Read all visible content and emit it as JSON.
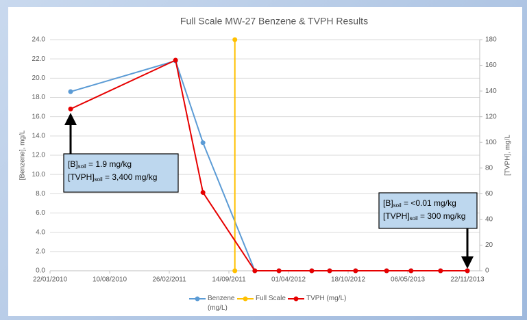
{
  "chart_data": {
    "type": "line",
    "title": "Full Scale MW-27 Benzene & TVPH Results",
    "y_label": "[Benzene], mg/L",
    "y2_label": "[TVPH], mg/L",
    "xlim": [
      "22/01/2010",
      "22/11/2013"
    ],
    "xticks": [
      "22/01/2010",
      "10/08/2010",
      "26/02/2011",
      "14/09/2011",
      "01/04/2012",
      "18/10/2012",
      "06/05/2013",
      "22/11/2013"
    ],
    "ylim": [
      0,
      24
    ],
    "yticks": [
      {
        "value": 0,
        "label": "0.0"
      },
      {
        "value": 2,
        "label": "2.0"
      },
      {
        "value": 4,
        "label": "4.0"
      },
      {
        "value": 6,
        "label": "6.0"
      },
      {
        "value": 8,
        "label": "8.0"
      },
      {
        "value": 10,
        "label": "10.0"
      },
      {
        "value": 12,
        "label": "12.0"
      },
      {
        "value": 14,
        "label": "14.0"
      },
      {
        "value": 16,
        "label": "16.0"
      },
      {
        "value": 18,
        "label": "18.0"
      },
      {
        "value": 20,
        "label": "20.0"
      },
      {
        "value": 22,
        "label": "22.0"
      },
      {
        "value": 24,
        "label": "24.0"
      }
    ],
    "y2lim": [
      0,
      180
    ],
    "y2ticks": [
      0,
      20,
      40,
      60,
      80,
      100,
      120,
      140,
      160,
      180
    ],
    "grid": true,
    "legend": "bottom",
    "series": [
      {
        "name": "Benzene (mg/L)",
        "color": "#5b9bd5",
        "x": [
          "01/04/2010",
          "19/03/2011",
          "19/06/2011",
          "10/12/2011",
          "29/02/2012",
          "18/06/2012",
          "17/08/2012",
          "12/11/2012",
          "24/02/2013",
          "17/05/2013",
          "24/08/2013",
          "22/11/2013"
        ],
        "values": [
          18.6,
          21.8,
          13.3,
          0,
          0,
          0,
          0,
          0,
          0,
          0,
          0,
          0
        ]
      },
      {
        "name": "Full Scale",
        "color": "#ffc000",
        "x": [
          "04/10/2011",
          "04/10/2011"
        ],
        "values": [
          0,
          24
        ]
      },
      {
        "name": "TVPH (mg/L)",
        "color": "#e60000",
        "axis": "y2",
        "x": [
          "01/04/2010",
          "19/03/2011",
          "19/06/2011",
          "10/12/2011",
          "29/02/2012",
          "18/06/2012",
          "17/08/2012",
          "12/11/2012",
          "24/02/2013",
          "17/05/2013",
          "24/08/2013",
          "22/11/2013"
        ],
        "values": [
          126,
          164,
          61,
          0,
          0,
          0,
          0,
          0,
          0,
          0,
          0,
          0
        ]
      }
    ],
    "annotations": [
      {
        "lines": [
          {
            "text": "[B]",
            "sub": "soil",
            "rest": " = 1.9 mg/kg"
          },
          {
            "text": "[TVPH]",
            "sub": "soil",
            "rest": " = 3,400 mg/kg"
          }
        ]
      },
      {
        "lines": [
          {
            "text": "[B]",
            "sub": "soil",
            "rest": " = <0.01 mg/kg"
          },
          {
            "text": "[TVPH]",
            "sub": "soil",
            "rest": " = 300 mg/kg"
          }
        ]
      }
    ]
  }
}
